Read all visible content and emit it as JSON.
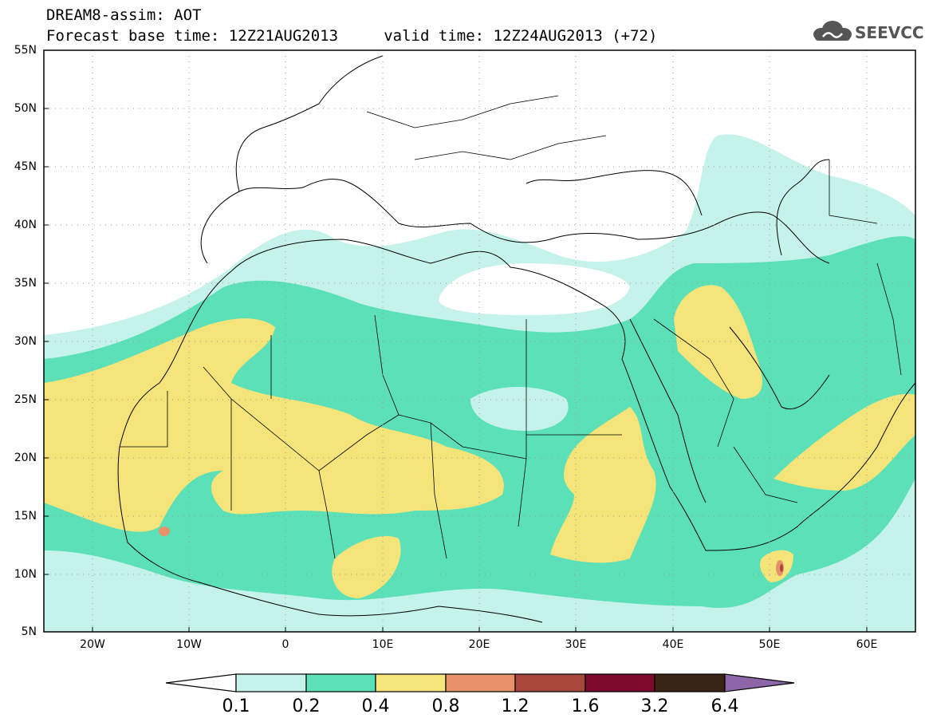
{
  "header": {
    "title_line1": "DREAM8-assim: AOT",
    "title_line2": "Forecast base time: 12Z21AUG2013     valid time: 12Z24AUG2013 (+72)"
  },
  "logo": {
    "text": "SEEVCCC",
    "icon": "cloud-logo-icon",
    "color": "#555555"
  },
  "map": {
    "lon_range": [
      -25,
      65
    ],
    "lat_range": [
      5,
      55
    ],
    "lat_labels": [
      "55N",
      "50N",
      "45N",
      "40N",
      "35N",
      "30N",
      "25N",
      "20N",
      "15N",
      "10N",
      "5N"
    ],
    "lon_labels": [
      "20W",
      "10W",
      "0",
      "10E",
      "20E",
      "30E",
      "40E",
      "50E",
      "60E"
    ],
    "gridlines": "dotted"
  },
  "colorbar": {
    "labels": [
      "0.1",
      "0.2",
      "0.4",
      "0.8",
      "1.2",
      "1.6",
      "3.2",
      "6.4"
    ],
    "colors": [
      "#ffffff",
      "#c6f2ec",
      "#5ce0b8",
      "#f4e479",
      "#e8916b",
      "#a8483c",
      "#7d0a2c",
      "#3a2416",
      "#8e65a8"
    ]
  }
}
